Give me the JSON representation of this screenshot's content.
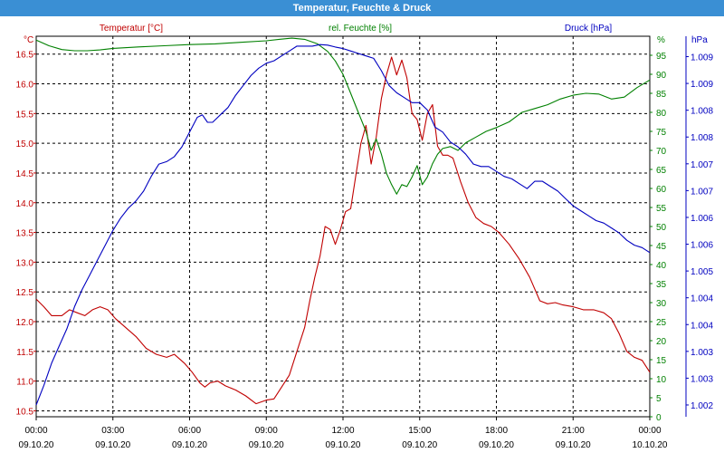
{
  "window": {
    "title": "Temperatur, Feuchte & Druck"
  },
  "colors": {
    "temperature": "#c00000",
    "humidity": "#008000",
    "pressure": "#0000c0",
    "grid": "#000000",
    "text": "#000000",
    "titlebar": "#3a8fd4"
  },
  "chart_data": {
    "type": "line",
    "grid": true,
    "x_ticks": [
      {
        "hours": 0,
        "time": "00:00",
        "date": "09.10.20"
      },
      {
        "hours": 3,
        "time": "03:00",
        "date": "09.10.20"
      },
      {
        "hours": 6,
        "time": "06:00",
        "date": "09.10.20"
      },
      {
        "hours": 9,
        "time": "09:00",
        "date": "09.10.20"
      },
      {
        "hours": 12,
        "time": "12:00",
        "date": "09.10.20"
      },
      {
        "hours": 15,
        "time": "15:00",
        "date": "09.10.20"
      },
      {
        "hours": 18,
        "time": "18:00",
        "date": "09.10.20"
      },
      {
        "hours": 21,
        "time": "21:00",
        "date": "09.10.20"
      },
      {
        "hours": 24,
        "time": "00:00",
        "date": "10.10.20"
      }
    ],
    "axes": {
      "temperature": {
        "label": "Temperatur [°C]",
        "unit": "°C",
        "range": [
          10.4,
          16.8
        ],
        "ticks": [
          "10.5",
          "11.0",
          "11.5",
          "12.0",
          "12.5",
          "13.0",
          "13.5",
          "14.0",
          "14.5",
          "15.0",
          "15.5",
          "16.0",
          "16.5"
        ]
      },
      "humidity": {
        "label": "rel. Feuchte [%]",
        "unit": "%",
        "range": [
          0,
          100
        ],
        "ticks": [
          "0",
          "5",
          "10",
          "15",
          "20",
          "25",
          "30",
          "35",
          "40",
          "45",
          "50",
          "55",
          "60",
          "65",
          "70",
          "75",
          "80",
          "85",
          "90",
          "95"
        ]
      },
      "pressure": {
        "label": "Druck [hPa]",
        "unit": "hPa",
        "range": [
          1001.76,
          1009.5
        ],
        "ticks": [
          "1.002",
          "1.003",
          "1.003",
          "1.004",
          "1.004",
          "1.005",
          "1.006",
          "1.006",
          "1.007",
          "1.007",
          "1.008",
          "1.008",
          "1.009",
          "1.009"
        ]
      }
    },
    "series": [
      {
        "name": "Temperatur [°C]",
        "axis": "temperature",
        "points": [
          [
            0,
            12.38
          ],
          [
            0.3,
            12.25
          ],
          [
            0.6,
            12.1
          ],
          [
            1.0,
            12.1
          ],
          [
            1.3,
            12.2
          ],
          [
            1.6,
            12.15
          ],
          [
            1.9,
            12.1
          ],
          [
            2.2,
            12.2
          ],
          [
            2.5,
            12.25
          ],
          [
            2.8,
            12.2
          ],
          [
            3.1,
            12.05
          ],
          [
            3.5,
            11.9
          ],
          [
            3.9,
            11.75
          ],
          [
            4.3,
            11.55
          ],
          [
            4.7,
            11.45
          ],
          [
            5.1,
            11.4
          ],
          [
            5.4,
            11.45
          ],
          [
            5.8,
            11.3
          ],
          [
            6.1,
            11.15
          ],
          [
            6.4,
            10.97
          ],
          [
            6.6,
            10.9
          ],
          [
            6.8,
            10.97
          ],
          [
            7.1,
            11.0
          ],
          [
            7.4,
            10.92
          ],
          [
            7.8,
            10.85
          ],
          [
            8.2,
            10.75
          ],
          [
            8.6,
            10.62
          ],
          [
            9.0,
            10.68
          ],
          [
            9.3,
            10.7
          ],
          [
            9.6,
            10.9
          ],
          [
            9.9,
            11.1
          ],
          [
            10.2,
            11.5
          ],
          [
            10.5,
            11.9
          ],
          [
            10.7,
            12.35
          ],
          [
            10.9,
            12.75
          ],
          [
            11.1,
            13.1
          ],
          [
            11.3,
            13.6
          ],
          [
            11.5,
            13.55
          ],
          [
            11.7,
            13.3
          ],
          [
            11.9,
            13.55
          ],
          [
            12.1,
            13.85
          ],
          [
            12.3,
            13.9
          ],
          [
            12.5,
            14.45
          ],
          [
            12.7,
            15.0
          ],
          [
            12.9,
            15.3
          ],
          [
            13.1,
            14.65
          ],
          [
            13.3,
            15.1
          ],
          [
            13.5,
            15.75
          ],
          [
            13.7,
            16.15
          ],
          [
            13.9,
            16.45
          ],
          [
            14.1,
            16.15
          ],
          [
            14.3,
            16.4
          ],
          [
            14.5,
            16.1
          ],
          [
            14.7,
            15.5
          ],
          [
            14.9,
            15.4
          ],
          [
            15.1,
            15.05
          ],
          [
            15.3,
            15.5
          ],
          [
            15.5,
            15.65
          ],
          [
            15.7,
            14.95
          ],
          [
            15.9,
            14.8
          ],
          [
            16.1,
            14.8
          ],
          [
            16.3,
            14.75
          ],
          [
            16.6,
            14.35
          ],
          [
            16.9,
            14.0
          ],
          [
            17.2,
            13.75
          ],
          [
            17.5,
            13.65
          ],
          [
            17.8,
            13.6
          ],
          [
            18.1,
            13.5
          ],
          [
            18.5,
            13.3
          ],
          [
            18.9,
            13.05
          ],
          [
            19.3,
            12.75
          ],
          [
            19.7,
            12.35
          ],
          [
            20.0,
            12.3
          ],
          [
            20.3,
            12.32
          ],
          [
            20.6,
            12.28
          ],
          [
            21.0,
            12.25
          ],
          [
            21.4,
            12.2
          ],
          [
            21.8,
            12.2
          ],
          [
            22.2,
            12.15
          ],
          [
            22.5,
            12.05
          ],
          [
            22.8,
            11.8
          ],
          [
            23.1,
            11.5
          ],
          [
            23.4,
            11.4
          ],
          [
            23.7,
            11.35
          ],
          [
            24.0,
            11.15
          ]
        ]
      },
      {
        "name": "rel. Feuchte [%]",
        "axis": "humidity",
        "points": [
          [
            0,
            99
          ],
          [
            0.5,
            97.5
          ],
          [
            1.0,
            96.5
          ],
          [
            1.5,
            96.2
          ],
          [
            2.0,
            96.2
          ],
          [
            2.5,
            96.4
          ],
          [
            3.0,
            96.8
          ],
          [
            4.0,
            97.2
          ],
          [
            5.0,
            97.5
          ],
          [
            6.0,
            97.8
          ],
          [
            7.0,
            98.0
          ],
          [
            8.0,
            98.4
          ],
          [
            9.0,
            98.8
          ],
          [
            9.5,
            99.2
          ],
          [
            10.0,
            99.5
          ],
          [
            10.5,
            99.2
          ],
          [
            11.0,
            98.0
          ],
          [
            11.4,
            96.0
          ],
          [
            11.7,
            93.5
          ],
          [
            12.0,
            90.0
          ],
          [
            12.3,
            85.0
          ],
          [
            12.6,
            80.0
          ],
          [
            12.9,
            75.0
          ],
          [
            13.1,
            70.0
          ],
          [
            13.3,
            73.0
          ],
          [
            13.5,
            69.0
          ],
          [
            13.7,
            64.0
          ],
          [
            13.9,
            61.0
          ],
          [
            14.1,
            58.5
          ],
          [
            14.3,
            61.0
          ],
          [
            14.5,
            60.5
          ],
          [
            14.7,
            63.0
          ],
          [
            14.9,
            66.0
          ],
          [
            15.1,
            61.0
          ],
          [
            15.3,
            63.0
          ],
          [
            15.5,
            66.5
          ],
          [
            15.7,
            69.0
          ],
          [
            15.9,
            70.5
          ],
          [
            16.2,
            71.0
          ],
          [
            16.5,
            70.0
          ],
          [
            16.8,
            72.0
          ],
          [
            17.2,
            73.5
          ],
          [
            17.6,
            75.0
          ],
          [
            18.0,
            76.0
          ],
          [
            18.5,
            77.5
          ],
          [
            19.0,
            80.0
          ],
          [
            19.5,
            81.0
          ],
          [
            20.0,
            82.0
          ],
          [
            20.5,
            83.5
          ],
          [
            21.0,
            84.5
          ],
          [
            21.5,
            85.0
          ],
          [
            22.0,
            84.8
          ],
          [
            22.5,
            83.5
          ],
          [
            23.0,
            84.0
          ],
          [
            23.5,
            86.5
          ],
          [
            24.0,
            88.5
          ]
        ]
      },
      {
        "name": "Druck [hPa]",
        "axis": "pressure",
        "points": [
          [
            0,
            1002.0
          ],
          [
            0.3,
            1002.4
          ],
          [
            0.6,
            1002.85
          ],
          [
            0.9,
            1003.2
          ],
          [
            1.2,
            1003.55
          ],
          [
            1.5,
            1004.0
          ],
          [
            1.8,
            1004.35
          ],
          [
            2.1,
            1004.65
          ],
          [
            2.4,
            1004.95
          ],
          [
            2.7,
            1005.25
          ],
          [
            3.0,
            1005.55
          ],
          [
            3.3,
            1005.8
          ],
          [
            3.6,
            1006.0
          ],
          [
            3.9,
            1006.15
          ],
          [
            4.2,
            1006.35
          ],
          [
            4.5,
            1006.65
          ],
          [
            4.8,
            1006.9
          ],
          [
            5.1,
            1006.95
          ],
          [
            5.4,
            1007.05
          ],
          [
            5.7,
            1007.25
          ],
          [
            6.0,
            1007.55
          ],
          [
            6.3,
            1007.85
          ],
          [
            6.5,
            1007.9
          ],
          [
            6.7,
            1007.75
          ],
          [
            6.9,
            1007.75
          ],
          [
            7.2,
            1007.9
          ],
          [
            7.5,
            1008.05
          ],
          [
            7.8,
            1008.3
          ],
          [
            8.1,
            1008.5
          ],
          [
            8.4,
            1008.7
          ],
          [
            8.7,
            1008.85
          ],
          [
            9.0,
            1008.95
          ],
          [
            9.3,
            1009.0
          ],
          [
            9.6,
            1009.1
          ],
          [
            9.9,
            1009.2
          ],
          [
            10.2,
            1009.3
          ],
          [
            10.5,
            1009.3
          ],
          [
            10.8,
            1009.3
          ],
          [
            11.1,
            1009.33
          ],
          [
            11.4,
            1009.32
          ],
          [
            11.7,
            1009.28
          ],
          [
            12.0,
            1009.25
          ],
          [
            12.3,
            1009.2
          ],
          [
            12.6,
            1009.15
          ],
          [
            12.9,
            1009.1
          ],
          [
            13.2,
            1009.05
          ],
          [
            13.5,
            1008.8
          ],
          [
            13.8,
            1008.5
          ],
          [
            14.1,
            1008.35
          ],
          [
            14.4,
            1008.25
          ],
          [
            14.7,
            1008.15
          ],
          [
            15.0,
            1008.15
          ],
          [
            15.3,
            1008.0
          ],
          [
            15.6,
            1007.65
          ],
          [
            15.9,
            1007.55
          ],
          [
            16.2,
            1007.35
          ],
          [
            16.5,
            1007.25
          ],
          [
            16.8,
            1007.1
          ],
          [
            17.1,
            1006.9
          ],
          [
            17.4,
            1006.85
          ],
          [
            17.7,
            1006.85
          ],
          [
            18.0,
            1006.75
          ],
          [
            18.3,
            1006.65
          ],
          [
            18.6,
            1006.6
          ],
          [
            18.9,
            1006.5
          ],
          [
            19.2,
            1006.4
          ],
          [
            19.5,
            1006.55
          ],
          [
            19.8,
            1006.55
          ],
          [
            20.1,
            1006.45
          ],
          [
            20.4,
            1006.35
          ],
          [
            20.7,
            1006.2
          ],
          [
            21.0,
            1006.05
          ],
          [
            21.3,
            1005.95
          ],
          [
            21.6,
            1005.85
          ],
          [
            21.9,
            1005.75
          ],
          [
            22.2,
            1005.7
          ],
          [
            22.5,
            1005.6
          ],
          [
            22.8,
            1005.5
          ],
          [
            23.1,
            1005.35
          ],
          [
            23.4,
            1005.25
          ],
          [
            23.7,
            1005.2
          ],
          [
            24.0,
            1005.1
          ]
        ]
      }
    ]
  }
}
